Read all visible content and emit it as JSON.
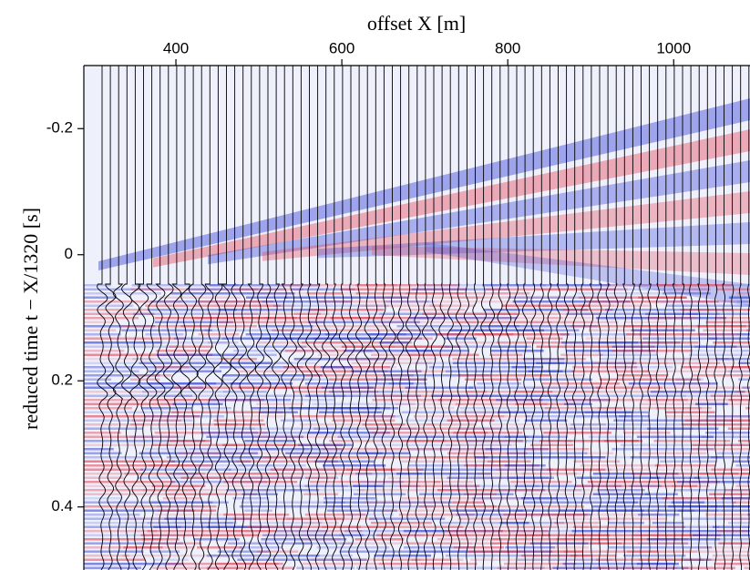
{
  "chart_data": {
    "type": "seismic",
    "xlabel": "offset X [m]",
    "ylabel": "reduced time t − X/1320 [s]",
    "xlim": [
      289,
      1092
    ],
    "xticks": [
      400,
      600,
      800,
      1000
    ],
    "ylim": [
      -0.3,
      0.5
    ],
    "yticks": [
      -0.2,
      0,
      0.2,
      0.4
    ],
    "y_inverted": true,
    "x_axis_position": "top"
  }
}
